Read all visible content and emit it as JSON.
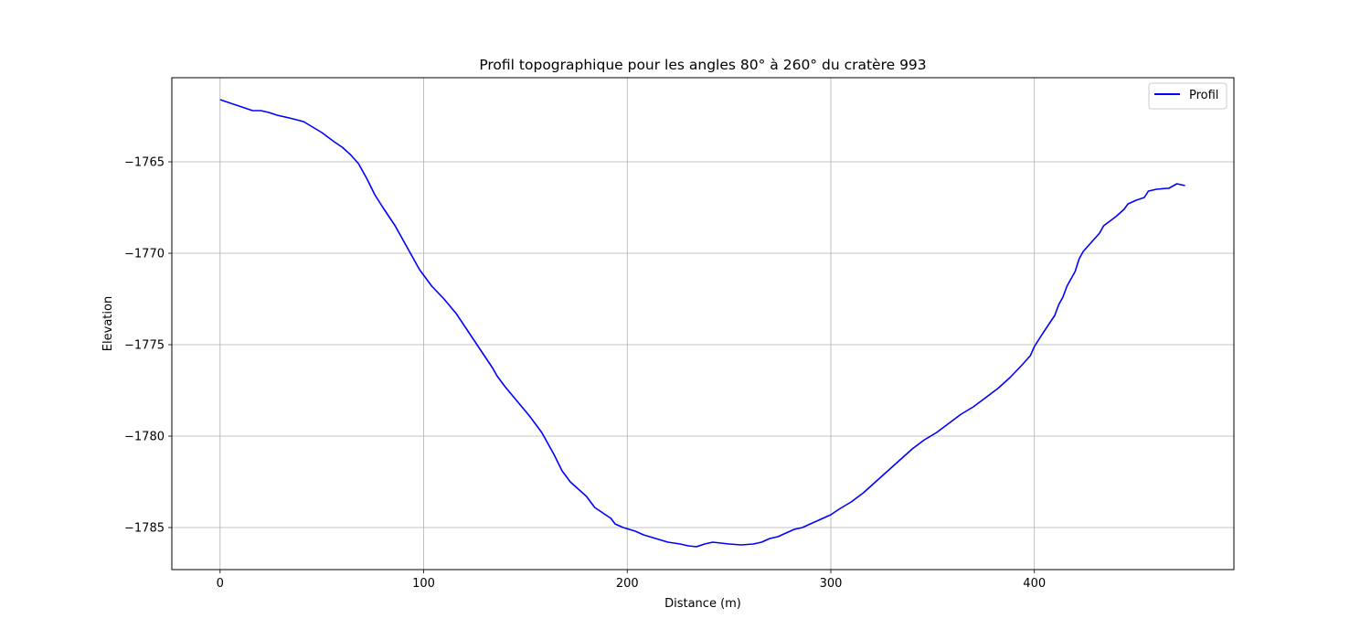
{
  "chart_data": {
    "type": "line",
    "title": "Profil topographique pour les angles 80° à 260° du cratère 993",
    "xlabel": "Distance (m)",
    "ylabel": "Elevation",
    "xlim": [
      -23.7,
      498
    ],
    "ylim": [
      -1787.3,
      -1760.4
    ],
    "x_ticks": [
      0,
      100,
      200,
      300,
      400
    ],
    "x_tick_labels": [
      "0",
      "100",
      "200",
      "300",
      "400"
    ],
    "y_ticks": [
      -1765,
      -1770,
      -1775,
      -1780,
      -1785
    ],
    "y_tick_labels": [
      "−1765",
      "−1770",
      "−1775",
      "−1780",
      "−1785"
    ],
    "grid": true,
    "legend": "top-right",
    "series": [
      {
        "name": "Profil",
        "color": "#0000ff",
        "x": [
          0,
          8,
          16,
          20,
          24,
          28,
          34,
          41,
          44,
          50,
          56,
          60,
          64,
          68,
          72,
          76,
          80,
          86,
          92,
          98,
          104,
          110,
          116,
          122,
          128,
          134,
          136,
          140,
          146,
          152,
          158,
          164,
          168,
          172,
          176,
          180,
          184,
          188,
          192,
          194,
          198,
          204,
          208,
          214,
          220,
          226,
          230,
          234,
          238,
          242,
          246,
          250,
          256,
          262,
          266,
          270,
          274,
          278,
          282,
          286,
          290,
          296,
          300,
          304,
          310,
          316,
          322,
          328,
          334,
          340,
          346,
          352,
          358,
          364,
          370,
          376,
          382,
          388,
          394,
          398,
          400,
          404,
          410,
          412,
          414,
          416,
          418,
          420,
          422,
          424,
          428,
          432,
          434,
          440,
          444,
          446,
          450,
          454,
          456,
          460,
          465,
          466,
          470,
          472,
          474
        ],
        "y": [
          -1761.6,
          -1761.9,
          -1762.2,
          -1762.2,
          -1762.3,
          -1762.45,
          -1762.6,
          -1762.8,
          -1763.0,
          -1763.4,
          -1763.9,
          -1764.2,
          -1764.6,
          -1765.1,
          -1765.9,
          -1766.8,
          -1767.5,
          -1768.5,
          -1769.7,
          -1770.9,
          -1771.8,
          -1772.5,
          -1773.3,
          -1774.3,
          -1775.3,
          -1776.3,
          -1776.7,
          -1777.3,
          -1778.1,
          -1778.9,
          -1779.8,
          -1781.0,
          -1781.9,
          -1782.5,
          -1782.9,
          -1783.3,
          -1783.9,
          -1784.2,
          -1784.5,
          -1784.8,
          -1785.0,
          -1785.2,
          -1785.4,
          -1785.6,
          -1785.8,
          -1785.9,
          -1786.0,
          -1786.05,
          -1785.9,
          -1785.8,
          -1785.85,
          -1785.9,
          -1785.95,
          -1785.9,
          -1785.8,
          -1785.6,
          -1785.5,
          -1785.3,
          -1785.1,
          -1785.0,
          -1784.8,
          -1784.5,
          -1784.3,
          -1784.0,
          -1783.6,
          -1783.1,
          -1782.5,
          -1781.9,
          -1781.3,
          -1780.7,
          -1780.2,
          -1779.8,
          -1779.3,
          -1778.8,
          -1778.4,
          -1777.9,
          -1777.4,
          -1776.8,
          -1776.1,
          -1775.6,
          -1775.1,
          -1774.4,
          -1773.4,
          -1772.8,
          -1772.4,
          -1771.8,
          -1771.4,
          -1771.0,
          -1770.3,
          -1769.9,
          -1769.4,
          -1768.9,
          -1768.5,
          -1768.0,
          -1767.6,
          -1767.3,
          -1767.1,
          -1766.95,
          -1766.6,
          -1766.5,
          -1766.45,
          -1766.45,
          -1766.2,
          -1766.25,
          -1766.3
        ]
      }
    ]
  }
}
